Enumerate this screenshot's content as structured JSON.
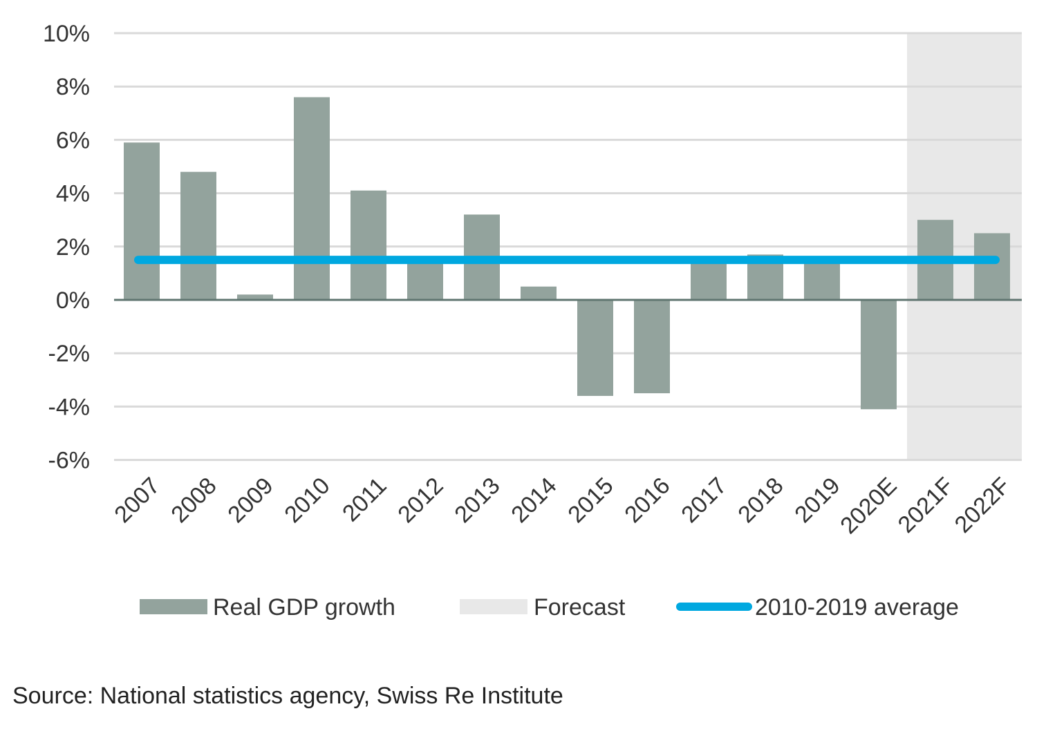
{
  "chart_data": {
    "type": "bar",
    "title": "",
    "xlabel": "",
    "ylabel": "",
    "categories": [
      "2007",
      "2008",
      "2009",
      "2010",
      "2011",
      "2012",
      "2013",
      "2014",
      "2015",
      "2016",
      "2017",
      "2018",
      "2019",
      "2020E",
      "2021F",
      "2022F"
    ],
    "series": [
      {
        "name": "Real GDP growth",
        "values": [
          5.9,
          4.8,
          0.2,
          7.6,
          4.1,
          1.5,
          3.2,
          0.5,
          -3.6,
          -3.5,
          1.5,
          1.7,
          1.4,
          -4.1,
          3.0,
          2.5
        ],
        "color": "#93a39d"
      }
    ],
    "average_line": {
      "name": "2010-2019 average",
      "value": 1.5,
      "color": "#00a8e0"
    },
    "forecast_region": {
      "name": "Forecast",
      "categories": [
        "2021F",
        "2022F"
      ],
      "color": "#e8e8e8"
    },
    "ylim": [
      -6,
      10
    ],
    "yticks": [
      -6,
      -4,
      -2,
      0,
      2,
      4,
      6,
      8,
      10
    ],
    "ytick_format": "%",
    "grid": true,
    "legend_position": "bottom"
  },
  "source": "Source: National statistics agency, Swiss Re Institute"
}
